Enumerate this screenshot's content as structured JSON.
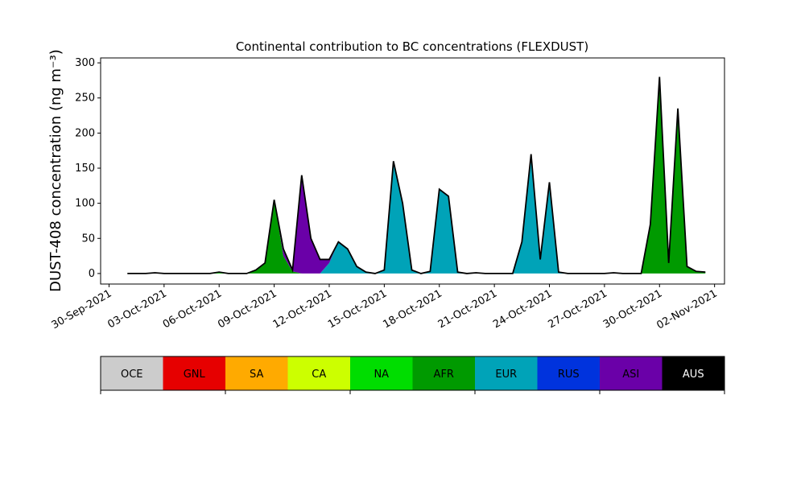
{
  "chart_data": {
    "type": "stacked_area",
    "title": "Continental contribution to BC concentrations (FLEXDUST)",
    "y_label": "DUST-408 concentration (ng m⁻³)",
    "x": [
      "2021-10-01 00:00",
      "2021-10-01 12:00",
      "2021-10-02 00:00",
      "2021-10-02 12:00",
      "2021-10-03 00:00",
      "2021-10-03 12:00",
      "2021-10-04 00:00",
      "2021-10-04 12:00",
      "2021-10-05 00:00",
      "2021-10-05 12:00",
      "2021-10-06 00:00",
      "2021-10-06 12:00",
      "2021-10-07 00:00",
      "2021-10-07 12:00",
      "2021-10-08 00:00",
      "2021-10-08 12:00",
      "2021-10-09 00:00",
      "2021-10-09 12:00",
      "2021-10-10 00:00",
      "2021-10-10 12:00",
      "2021-10-11 00:00",
      "2021-10-11 12:00",
      "2021-10-12 00:00",
      "2021-10-12 12:00",
      "2021-10-13 00:00",
      "2021-10-13 12:00",
      "2021-10-14 00:00",
      "2021-10-14 12:00",
      "2021-10-15 00:00",
      "2021-10-15 12:00",
      "2021-10-16 00:00",
      "2021-10-16 12:00",
      "2021-10-17 00:00",
      "2021-10-17 12:00",
      "2021-10-18 00:00",
      "2021-10-18 12:00",
      "2021-10-19 00:00",
      "2021-10-19 12:00",
      "2021-10-20 00:00",
      "2021-10-20 12:00",
      "2021-10-21 00:00",
      "2021-10-21 12:00",
      "2021-10-22 00:00",
      "2021-10-22 12:00",
      "2021-10-23 00:00",
      "2021-10-23 12:00",
      "2021-10-24 00:00",
      "2021-10-24 12:00",
      "2021-10-25 00:00",
      "2021-10-25 12:00",
      "2021-10-26 00:00",
      "2021-10-26 12:00",
      "2021-10-27 00:00",
      "2021-10-27 12:00",
      "2021-10-28 00:00",
      "2021-10-28 12:00",
      "2021-10-29 00:00",
      "2021-10-29 12:00",
      "2021-10-30 00:00",
      "2021-10-30 12:00",
      "2021-10-31 00:00",
      "2021-10-31 12:00",
      "2021-11-01 00:00",
      "2021-11-01 12:00"
    ],
    "series": [
      {
        "name": "NA",
        "color": "#00dd00",
        "values": [
          0,
          0,
          0,
          1,
          0,
          0,
          0,
          0,
          0,
          0,
          2,
          0,
          0,
          0,
          0,
          0,
          0,
          0,
          0,
          0,
          0,
          0,
          0,
          0,
          0,
          0,
          0,
          0,
          0,
          0,
          0,
          0,
          0,
          0,
          0,
          0,
          0,
          0,
          1,
          0,
          0,
          0,
          0,
          0,
          0,
          0,
          0,
          0,
          0,
          0,
          0,
          0,
          0,
          1,
          0,
          0,
          0,
          0,
          0,
          0,
          0,
          0,
          0,
          0
        ]
      },
      {
        "name": "AFR",
        "color": "#009a00",
        "values": [
          0,
          0,
          0,
          0,
          0,
          0,
          0,
          0,
          0,
          0,
          0,
          0,
          0,
          0,
          5,
          15,
          105,
          25,
          3,
          0,
          0,
          0,
          0,
          0,
          0,
          0,
          0,
          0,
          0,
          0,
          0,
          0,
          0,
          0,
          0,
          0,
          0,
          0,
          0,
          0,
          0,
          0,
          0,
          0,
          0,
          0,
          0,
          0,
          0,
          0,
          0,
          0,
          0,
          0,
          0,
          0,
          0,
          70,
          280,
          15,
          230,
          10,
          3,
          2
        ]
      },
      {
        "name": "EUR",
        "color": "#00a3b8",
        "values": [
          0,
          0,
          0,
          0,
          0,
          0,
          0,
          0,
          0,
          0,
          0,
          0,
          0,
          0,
          0,
          0,
          0,
          0,
          0,
          0,
          0,
          0,
          15,
          45,
          35,
          10,
          2,
          0,
          5,
          160,
          100,
          5,
          0,
          3,
          120,
          110,
          2,
          0,
          0,
          0,
          0,
          0,
          0,
          45,
          170,
          20,
          130,
          2,
          0,
          0,
          0,
          0,
          0,
          0,
          0,
          0,
          0,
          0,
          0,
          0,
          5,
          0,
          0,
          0
        ]
      },
      {
        "name": "ASI",
        "color": "#6a00a8",
        "values": [
          0,
          0,
          0,
          0,
          0,
          0,
          0,
          0,
          0,
          0,
          0,
          0,
          0,
          0,
          0,
          0,
          0,
          10,
          2,
          140,
          50,
          20,
          5,
          0,
          0,
          0,
          0,
          0,
          0,
          0,
          0,
          0,
          0,
          0,
          0,
          0,
          0,
          0,
          0,
          0,
          0,
          0,
          0,
          0,
          0,
          0,
          0,
          0,
          0,
          0,
          0,
          0,
          0,
          0,
          0,
          0,
          0,
          0,
          0,
          0,
          0,
          0,
          0,
          0
        ]
      }
    ],
    "xlim": [
      "2021-09-29 13:00",
      "2021-11-02 13:00"
    ],
    "xticks": [
      {
        "value": "2021-09-30 00:00",
        "label": "30-Sep-2021"
      },
      {
        "value": "2021-10-03 00:00",
        "label": "03-Oct-2021"
      },
      {
        "value": "2021-10-06 00:00",
        "label": "06-Oct-2021"
      },
      {
        "value": "2021-10-09 00:00",
        "label": "09-Oct-2021"
      },
      {
        "value": "2021-10-12 00:00",
        "label": "12-Oct-2021"
      },
      {
        "value": "2021-10-15 00:00",
        "label": "15-Oct-2021"
      },
      {
        "value": "2021-10-18 00:00",
        "label": "18-Oct-2021"
      },
      {
        "value": "2021-10-21 00:00",
        "label": "21-Oct-2021"
      },
      {
        "value": "2021-10-24 00:00",
        "label": "24-Oct-2021"
      },
      {
        "value": "2021-10-27 00:00",
        "label": "27-Oct-2021"
      },
      {
        "value": "2021-10-30 00:00",
        "label": "30-Oct-2021"
      },
      {
        "value": "2021-11-02 00:00",
        "label": "02-Nov-2021"
      }
    ],
    "ylim": [
      -15,
      307
    ],
    "yticks": [
      0,
      50,
      100,
      150,
      200,
      250,
      300
    ],
    "colorbar": {
      "labels": [
        "OCE",
        "GNL",
        "SA",
        "CA",
        "NA",
        "AFR",
        "EUR",
        "RUS",
        "ASI",
        "AUS"
      ],
      "colors": [
        "#cccccc",
        "#e60000",
        "#ffaa00",
        "#ccff00",
        "#00dd00",
        "#009a00",
        "#00a3b8",
        "#0033dd",
        "#6a00a8",
        "#000000"
      ]
    }
  }
}
